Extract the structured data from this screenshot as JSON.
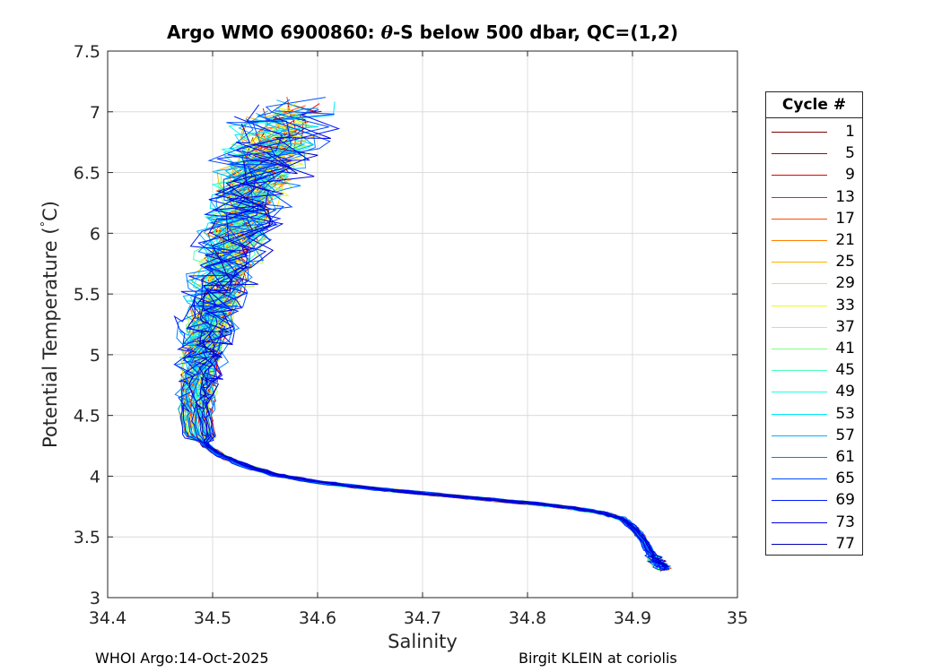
{
  "chart_data": {
    "type": "line",
    "title_prefix": "Argo WMO 6900860: ",
    "title_symbol": "θ",
    "title_suffix": "-S below 500 dbar,  QC=(1,2)",
    "xlabel": "Salinity",
    "ylabel": "Potential Temperature (",
    "ylabel_degree": "°",
    "ylabel_unit": "C)",
    "xlim": [
      34.4,
      35
    ],
    "ylim": [
      3,
      7.5
    ],
    "xticks": [
      "34.4",
      "34.5",
      "34.6",
      "34.7",
      "34.8",
      "34.9",
      "35"
    ],
    "yticks": [
      "3",
      "3.5",
      "4",
      "4.5",
      "5",
      "5.5",
      "6",
      "6.5",
      "7",
      "7.5"
    ],
    "grid": true,
    "legend_title": "Cycle #",
    "legend_position": "outside-right",
    "legend": [
      {
        "label": "1",
        "color": "#800000"
      },
      {
        "label": "5",
        "color": "#b30000"
      },
      {
        "label": "9",
        "color": "#e60000"
      },
      {
        "label": "13",
        "color": "#ff1a00"
      },
      {
        "label": "17",
        "color": "#ff4d00"
      },
      {
        "label": "21",
        "color": "#ff8000"
      },
      {
        "label": "25",
        "color": "#ffb300"
      },
      {
        "label": "29",
        "color": "#ffe600"
      },
      {
        "label": "33",
        "color": "#e6ff1a"
      },
      {
        "label": "37",
        "color": "#b3ff4d"
      },
      {
        "label": "41",
        "color": "#80ff80"
      },
      {
        "label": "45",
        "color": "#4dffb3"
      },
      {
        "label": "49",
        "color": "#1affe6"
      },
      {
        "label": "53",
        "color": "#00e6ff"
      },
      {
        "label": "57",
        "color": "#00b3ff"
      },
      {
        "label": "61",
        "color": "#0080ff"
      },
      {
        "label": "65",
        "color": "#004dff"
      },
      {
        "label": "69",
        "color": "#001aff"
      },
      {
        "label": "73",
        "color": "#0000e6"
      },
      {
        "label": "77",
        "color": "#0000b3"
      }
    ],
    "mean_profile": {
      "salinity": [
        34.575,
        34.565,
        34.548,
        34.535,
        34.522,
        34.512,
        34.503,
        34.497,
        34.492,
        34.488,
        34.485,
        34.484,
        34.487,
        34.494,
        34.508,
        34.53,
        34.56,
        34.6,
        34.65,
        34.7,
        34.75,
        34.8,
        34.84,
        34.87,
        34.89,
        34.9,
        34.91,
        34.915,
        34.92,
        34.925,
        34.93
      ],
      "temperature": [
        7.1,
        6.9,
        6.6,
        6.3,
        6.0,
        5.7,
        5.45,
        5.25,
        5.05,
        4.85,
        4.65,
        4.48,
        4.35,
        4.25,
        4.17,
        4.09,
        4.01,
        3.95,
        3.9,
        3.86,
        3.82,
        3.78,
        3.74,
        3.7,
        3.65,
        3.58,
        3.48,
        3.4,
        3.33,
        3.28,
        3.24
      ]
    }
  },
  "footer": {
    "left": "WHOI Argo:14-Oct-2025",
    "right": "Birgit KLEIN at coriolis"
  }
}
